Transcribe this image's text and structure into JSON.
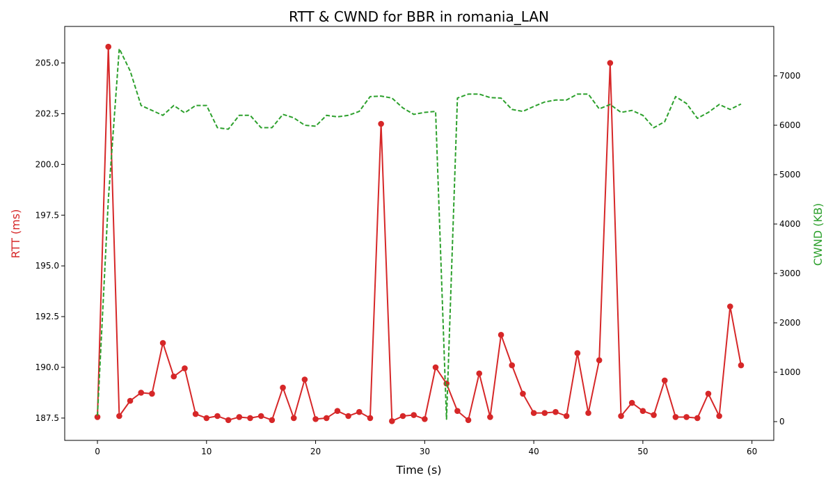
{
  "chart_data": {
    "type": "line",
    "title": "RTT & CWND for BBR in romania_LAN",
    "xlabel": "Time (s)",
    "ylabel_left": "RTT (ms)",
    "ylabel_right": "CWND (KB)",
    "xlim": [
      -3,
      62
    ],
    "ylim_left": [
      186.4,
      206.8
    ],
    "ylim_right": [
      -380,
      8000
    ],
    "x_ticks": [
      0,
      10,
      20,
      30,
      40,
      50,
      60
    ],
    "y_ticks_left": [
      187.5,
      190.0,
      192.5,
      195.0,
      197.5,
      200.0,
      202.5,
      205.0
    ],
    "y_ticks_right": [
      0,
      1000,
      2000,
      3000,
      4000,
      5000,
      6000,
      7000
    ],
    "grid": false,
    "colors": {
      "rtt": "#d62728",
      "cwnd": "#2ca02c"
    },
    "x": [
      0,
      1,
      2,
      3,
      4,
      5,
      6,
      7,
      8,
      9,
      10,
      11,
      12,
      13,
      14,
      15,
      16,
      17,
      18,
      19,
      20,
      21,
      22,
      23,
      24,
      25,
      26,
      27,
      28,
      29,
      30,
      31,
      32,
      33,
      34,
      35,
      36,
      37,
      38,
      39,
      40,
      41,
      42,
      43,
      44,
      45,
      46,
      47,
      48,
      49,
      50,
      51,
      52,
      53,
      54,
      55,
      56,
      57,
      58,
      59
    ],
    "series": [
      {
        "key": "rtt",
        "axis": "left",
        "style": "line-marker",
        "values": [
          187.55,
          205.8,
          187.6,
          188.35,
          188.75,
          188.7,
          191.2,
          189.55,
          189.95,
          187.7,
          187.5,
          187.6,
          187.4,
          187.55,
          187.5,
          187.6,
          187.4,
          189.0,
          187.5,
          189.4,
          187.45,
          187.5,
          187.85,
          187.6,
          187.8,
          187.5,
          202.0,
          187.35,
          187.6,
          187.65,
          187.45,
          190.0,
          189.2,
          187.85,
          187.4,
          189.7,
          187.55,
          191.6,
          190.1,
          188.7,
          187.75,
          187.75,
          187.8,
          187.6,
          190.7,
          187.75,
          190.35,
          205.0,
          187.6,
          188.25,
          187.85,
          187.65,
          189.35,
          187.55,
          187.55,
          187.5,
          188.7,
          187.6,
          193.0,
          190.1
        ]
      },
      {
        "key": "cwnd",
        "axis": "right",
        "style": "dashed",
        "values": [
          120,
          4500,
          7550,
          7100,
          6400,
          6300,
          6200,
          6400,
          6250,
          6400,
          6400,
          5950,
          5920,
          6200,
          6200,
          5950,
          5950,
          6220,
          6150,
          6000,
          5980,
          6200,
          6170,
          6200,
          6280,
          6580,
          6590,
          6550,
          6350,
          6220,
          6260,
          6280,
          50,
          6550,
          6630,
          6630,
          6560,
          6550,
          6320,
          6280,
          6380,
          6470,
          6510,
          6510,
          6630,
          6630,
          6330,
          6420,
          6260,
          6300,
          6200,
          5950,
          6070,
          6580,
          6440,
          6140,
          6260,
          6420,
          6320,
          6430
        ]
      }
    ]
  }
}
